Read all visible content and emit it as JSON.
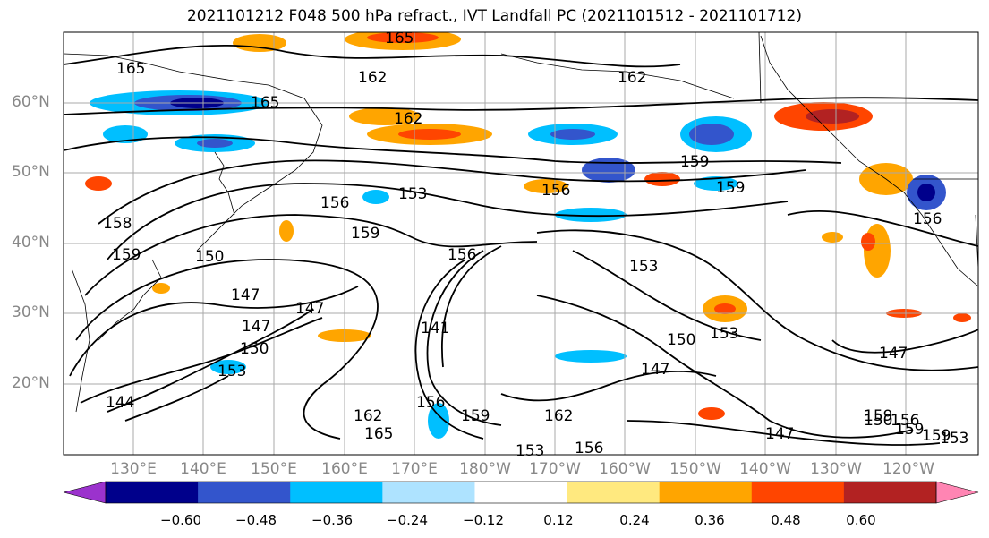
{
  "title": "2021101212 F048 500 hPa refract., IVT Landfall PC (2021101512 - 2021101712)",
  "lat_labels": [
    "60°N",
    "50°N",
    "40°N",
    "30°N",
    "20°N"
  ],
  "lon_labels": [
    "130°E",
    "140°E",
    "150°E",
    "160°E",
    "170°E",
    "180°W",
    "170°W",
    "160°W",
    "150°W",
    "140°W",
    "130°W",
    "120°W"
  ],
  "colorbar": {
    "colors": [
      "#9b32cd",
      "#00008b",
      "#3355cc",
      "#00bfff",
      "#aee3ff",
      "#ffffff",
      "#ffe97f",
      "#ffa500",
      "#ff4500",
      "#b22222",
      "#ff85b3"
    ],
    "tick_labels": [
      "−0.60",
      "−0.48",
      "−0.36",
      "−0.24",
      "−0.12",
      "0.12",
      "0.24",
      "0.36",
      "0.48",
      "0.60"
    ]
  },
  "contour_labels": [
    "165",
    "165",
    "162",
    "165",
    "162",
    "162",
    "159",
    "159",
    "156",
    "153",
    "156",
    "159",
    "156",
    "153",
    "150",
    "153",
    "147",
    "147",
    "147",
    "147",
    "144",
    "141",
    "147",
    "150",
    "159",
    "162",
    "165",
    "159",
    "162",
    "156",
    "153",
    "150",
    "153",
    "147",
    "156",
    "159",
    "158",
    "159",
    "156",
    "150",
    "159",
    "156",
    "153"
  ]
}
